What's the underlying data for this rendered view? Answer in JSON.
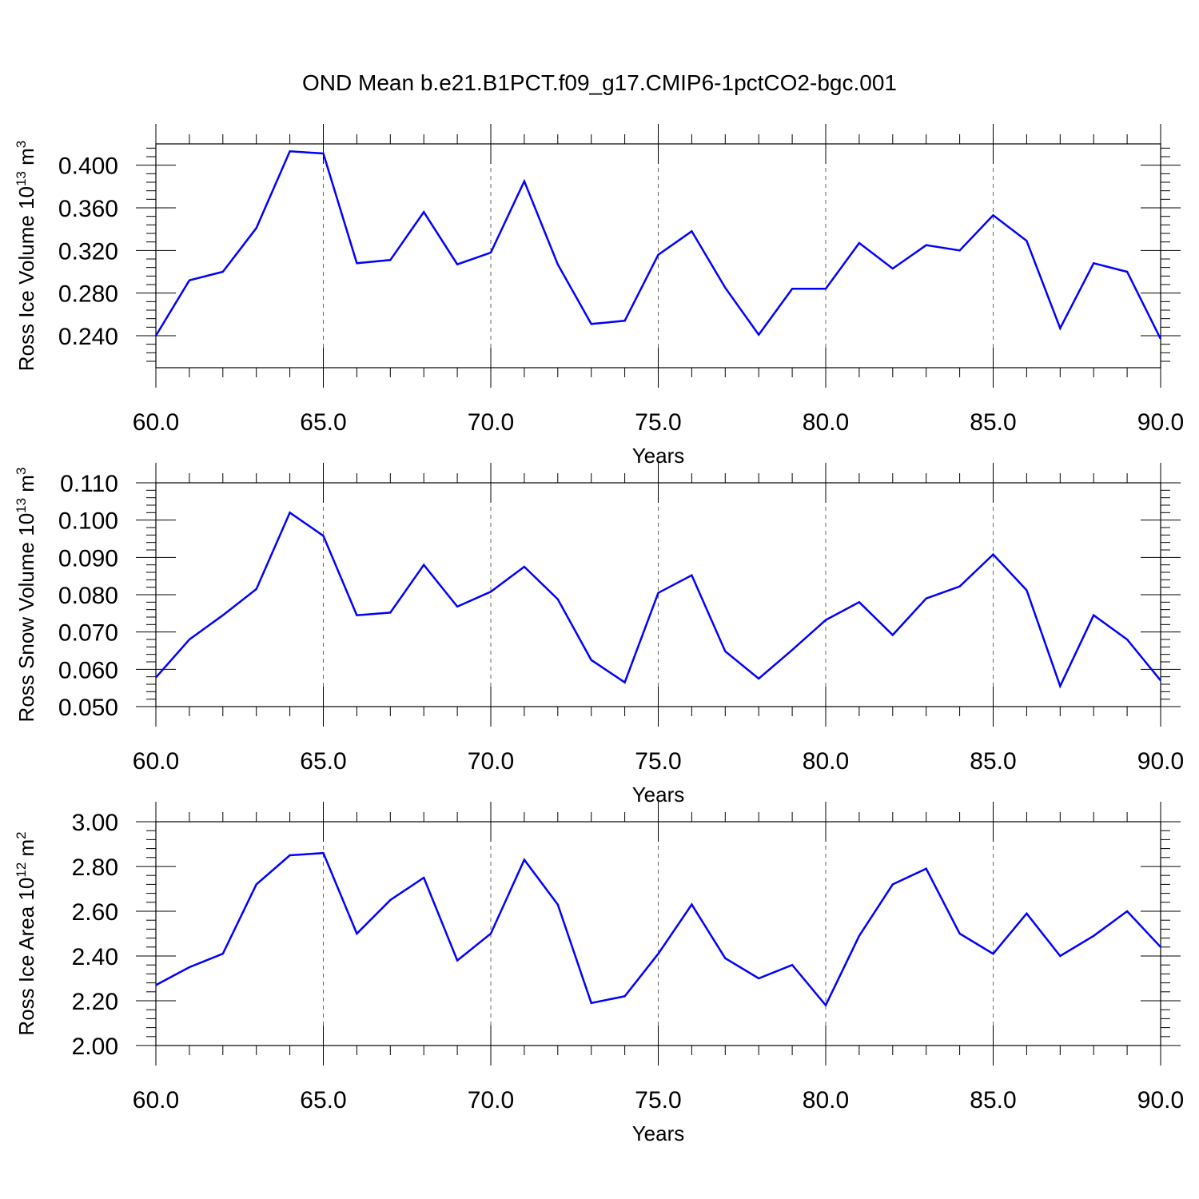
{
  "title": "OND Mean b.e21.B1PCT.f09_g17.CMIP6-1pctCO2-bgc.001",
  "chart_data": [
    {
      "type": "line",
      "ylabel": "Ross Ice Volume 10",
      "ylabel_exp": "13",
      "ylabel_unit": " m",
      "ylabel_unit_exp": "3",
      "xlabel": "Years",
      "xlim": [
        60,
        90
      ],
      "ylim": [
        0.21,
        0.42
      ],
      "xticks": [
        "60.0",
        "65.0",
        "70.0",
        "75.0",
        "80.0",
        "85.0",
        "90.0"
      ],
      "yticks": [
        "0.240",
        "0.280",
        "0.320",
        "0.360",
        "0.400"
      ],
      "series": [
        {
          "color": "#0000ff",
          "x": [
            60,
            61,
            62,
            63,
            64,
            65,
            66,
            67,
            68,
            69,
            70,
            71,
            72,
            73,
            74,
            75,
            76,
            77,
            78,
            79,
            80,
            81,
            82,
            83,
            84,
            85,
            86,
            87,
            88,
            89,
            90
          ],
          "values": [
            0.24,
            0.292,
            0.3,
            0.341,
            0.413,
            0.411,
            0.308,
            0.311,
            0.356,
            0.307,
            0.318,
            0.385,
            0.307,
            0.251,
            0.254,
            0.316,
            0.338,
            0.285,
            0.241,
            0.284,
            0.284,
            0.327,
            0.303,
            0.325,
            0.32,
            0.353,
            0.329,
            0.247,
            0.308,
            0.3,
            0.237
          ]
        }
      ]
    },
    {
      "type": "line",
      "ylabel": "Ross Snow Volume 10",
      "ylabel_exp": "13",
      "ylabel_unit": " m",
      "ylabel_unit_exp": "3",
      "xlabel": "Years",
      "xlim": [
        60,
        90
      ],
      "ylim": [
        0.05,
        0.11
      ],
      "xticks": [
        "60.0",
        "65.0",
        "70.0",
        "75.0",
        "80.0",
        "85.0",
        "90.0"
      ],
      "yticks": [
        "0.050",
        "0.060",
        "0.070",
        "0.080",
        "0.090",
        "0.100",
        "0.110"
      ],
      "series": [
        {
          "color": "#0000ff",
          "x": [
            60,
            61,
            62,
            63,
            64,
            65,
            66,
            67,
            68,
            69,
            70,
            71,
            72,
            73,
            74,
            75,
            76,
            77,
            78,
            79,
            80,
            81,
            82,
            83,
            84,
            85,
            86,
            87,
            88,
            89,
            90
          ],
          "values": [
            0.0578,
            0.068,
            0.0745,
            0.0815,
            0.102,
            0.0958,
            0.0745,
            0.0752,
            0.088,
            0.0768,
            0.0808,
            0.0875,
            0.0788,
            0.0625,
            0.0565,
            0.0805,
            0.0852,
            0.0648,
            0.0575,
            0.0652,
            0.0732,
            0.078,
            0.0692,
            0.079,
            0.0822,
            0.0908,
            0.0812,
            0.0555,
            0.0745,
            0.068,
            0.057
          ]
        }
      ]
    },
    {
      "type": "line",
      "ylabel": "Ross Ice Area 10",
      "ylabel_exp": "12",
      "ylabel_unit": " m",
      "ylabel_unit_exp": "2",
      "xlabel": "Years",
      "xlim": [
        60,
        90
      ],
      "ylim": [
        2.0,
        3.0
      ],
      "xticks": [
        "60.0",
        "65.0",
        "70.0",
        "75.0",
        "80.0",
        "85.0",
        "90.0"
      ],
      "yticks": [
        "2.00",
        "2.20",
        "2.40",
        "2.60",
        "2.80",
        "3.00"
      ],
      "series": [
        {
          "color": "#0000ff",
          "x": [
            60,
            61,
            62,
            63,
            64,
            65,
            66,
            67,
            68,
            69,
            70,
            71,
            72,
            73,
            74,
            75,
            76,
            77,
            78,
            79,
            80,
            81,
            82,
            83,
            84,
            85,
            86,
            87,
            88,
            89,
            90
          ],
          "values": [
            2.27,
            2.35,
            2.41,
            2.72,
            2.85,
            2.86,
            2.5,
            2.65,
            2.75,
            2.38,
            2.5,
            2.83,
            2.63,
            2.19,
            2.22,
            2.41,
            2.63,
            2.39,
            2.3,
            2.36,
            2.18,
            2.49,
            2.72,
            2.79,
            2.5,
            2.41,
            2.59,
            2.4,
            2.49,
            2.6,
            2.44
          ]
        }
      ]
    }
  ]
}
